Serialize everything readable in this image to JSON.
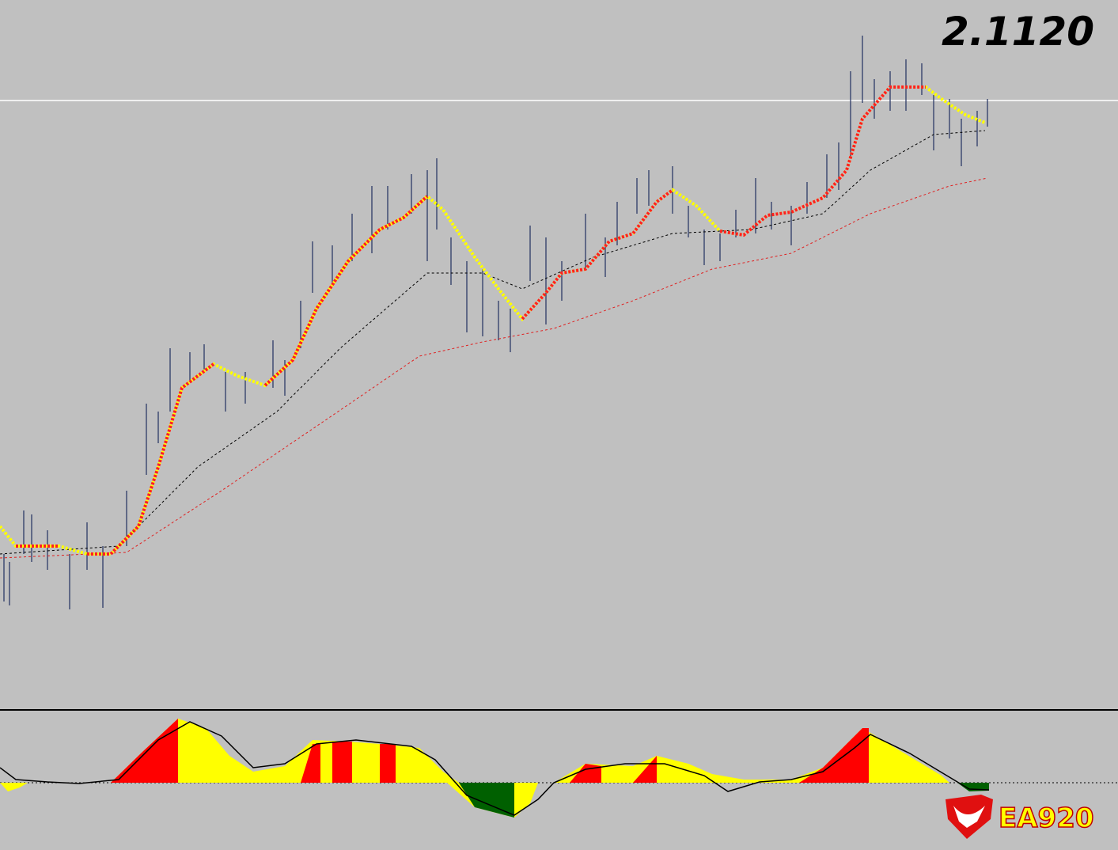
{
  "price_label": "2.1120",
  "logo": {
    "text": "EA920"
  }
}
